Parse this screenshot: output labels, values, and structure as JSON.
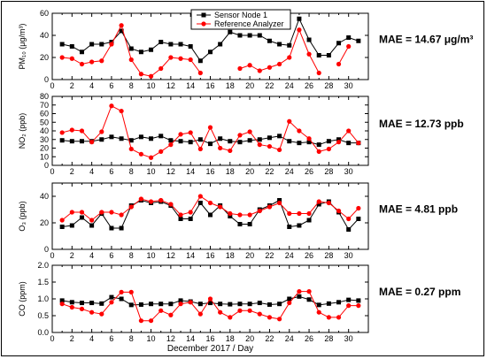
{
  "colors": {
    "sensor": "#000000",
    "reference": "#ff0000"
  },
  "legend": {
    "sensor": "Sensor Node 1",
    "reference": "Reference Analyzer",
    "placement": "top-center"
  },
  "xlabel": "December 2017 / Day",
  "chart_data": [
    {
      "type": "line",
      "ylabel": "PM₁₀ (μg/m³)",
      "mae": "MAE = 14.67 μg/m³",
      "ylim": [
        0,
        60
      ],
      "yticks": [
        "0",
        "20",
        "40",
        "60"
      ],
      "xlim": [
        0,
        32
      ],
      "xticks": [
        "0",
        "2",
        "4",
        "6",
        "8",
        "10",
        "12",
        "14",
        "16",
        "18",
        "20",
        "22",
        "24",
        "26",
        "28",
        "30"
      ],
      "x": [
        1,
        2,
        3,
        4,
        5,
        6,
        7,
        8,
        9,
        10,
        11,
        12,
        13,
        14,
        15,
        16,
        17,
        18,
        19,
        20,
        21,
        22,
        23,
        24,
        25,
        26,
        27,
        28,
        29,
        30,
        31
      ],
      "series": [
        {
          "name": "Sensor Node 1",
          "values": [
            32,
            30,
            25,
            32,
            32,
            34,
            44,
            28,
            25,
            27,
            34,
            32,
            32,
            30,
            17,
            25,
            32,
            43,
            40,
            40,
            40,
            35,
            32,
            31,
            55,
            36,
            22,
            22,
            33,
            38,
            35
          ]
        },
        {
          "name": "Reference Analyzer",
          "values": [
            20,
            19,
            14,
            16,
            17,
            32,
            49,
            18,
            5,
            3,
            10,
            20,
            19,
            18,
            6,
            null,
            null,
            null,
            10,
            13,
            8,
            11,
            14,
            20,
            45,
            23,
            6,
            null,
            14,
            30,
            null
          ]
        }
      ]
    },
    {
      "type": "line",
      "ylabel": "NO₂ (ppb)",
      "mae": "MAE = 12.73 ppb",
      "ylim": [
        0,
        80
      ],
      "yticks": [
        "0",
        "10",
        "20",
        "30",
        "40",
        "50",
        "60",
        "70",
        "80"
      ],
      "xlim": [
        0,
        32
      ],
      "x": [
        1,
        2,
        3,
        4,
        5,
        6,
        7,
        8,
        9,
        10,
        11,
        12,
        13,
        14,
        15,
        16,
        17,
        18,
        19,
        20,
        21,
        22,
        23,
        24,
        25,
        26,
        27,
        28,
        29,
        30,
        31
      ],
      "series": [
        {
          "name": "Sensor Node 1",
          "values": [
            29,
            28,
            28,
            28,
            30,
            33,
            31,
            29,
            33,
            31,
            34,
            29,
            28,
            27,
            30,
            25,
            31,
            28,
            27,
            29,
            30,
            32,
            34,
            28,
            26,
            27,
            24,
            28,
            30,
            26,
            26
          ]
        },
        {
          "name": "Reference Analyzer",
          "values": [
            38,
            41,
            40,
            27,
            39,
            69,
            63,
            19,
            13,
            9,
            16,
            24,
            36,
            38,
            19,
            44,
            20,
            17,
            35,
            39,
            24,
            22,
            18,
            51,
            40,
            31,
            16,
            19,
            27,
            40,
            26
          ]
        }
      ]
    },
    {
      "type": "line",
      "ylabel": "O₃ (ppb)",
      "mae": "MAE = 4.81 ppb",
      "ylim": [
        0,
        50
      ],
      "yticks": [
        "0",
        "20",
        "40"
      ],
      "xlim": [
        0,
        32
      ],
      "x": [
        1,
        2,
        3,
        4,
        5,
        6,
        7,
        8,
        9,
        10,
        11,
        12,
        13,
        14,
        15,
        16,
        17,
        18,
        19,
        20,
        21,
        22,
        23,
        24,
        25,
        26,
        27,
        28,
        29,
        30,
        31
      ],
      "series": [
        {
          "name": "Sensor Node 1",
          "values": [
            17,
            18,
            24,
            18,
            27,
            16,
            16,
            33,
            37,
            35,
            36,
            33,
            23,
            23,
            35,
            26,
            33,
            25,
            19,
            19,
            30,
            33,
            37,
            17,
            18,
            22,
            34,
            36,
            28,
            15,
            23
          ]
        },
        {
          "name": "Reference Analyzer",
          "values": [
            22,
            28,
            28,
            22,
            28,
            28,
            26,
            32,
            38,
            36,
            37,
            34,
            26,
            28,
            40,
            35,
            32,
            27,
            26,
            26,
            29,
            32,
            35,
            27,
            27,
            27,
            36,
            35,
            29,
            23,
            31
          ]
        }
      ]
    },
    {
      "type": "line",
      "ylabel": "CO (ppm)",
      "mae": "MAE = 0.27 ppm",
      "ylim": [
        0,
        2
      ],
      "yticks": [
        "0.0",
        "0.5",
        "1.0",
        "1.5",
        "2.0"
      ],
      "xlim": [
        0,
        32
      ],
      "x": [
        1,
        2,
        3,
        4,
        5,
        6,
        7,
        8,
        9,
        10,
        11,
        12,
        13,
        14,
        15,
        16,
        17,
        18,
        19,
        20,
        21,
        22,
        23,
        24,
        25,
        26,
        27,
        28,
        29,
        30,
        31
      ],
      "series": [
        {
          "name": "Sensor Node 1",
          "values": [
            0.95,
            0.9,
            0.88,
            0.88,
            0.86,
            1.05,
            1.0,
            0.82,
            0.83,
            0.85,
            0.85,
            0.85,
            0.95,
            0.92,
            0.85,
            0.88,
            0.85,
            0.84,
            0.85,
            0.85,
            0.88,
            0.83,
            0.85,
            1.0,
            1.07,
            0.98,
            0.82,
            0.86,
            0.9,
            0.97,
            0.95
          ]
        },
        {
          "name": "Reference Analyzer",
          "values": [
            0.85,
            0.75,
            0.7,
            0.6,
            0.55,
            0.9,
            1.2,
            1.2,
            0.35,
            0.35,
            0.65,
            0.52,
            0.85,
            0.9,
            0.55,
            1.0,
            0.6,
            0.45,
            0.65,
            0.65,
            0.55,
            0.45,
            0.4,
            0.88,
            1.22,
            1.22,
            0.6,
            0.45,
            0.45,
            0.8,
            0.8
          ]
        }
      ]
    }
  ]
}
